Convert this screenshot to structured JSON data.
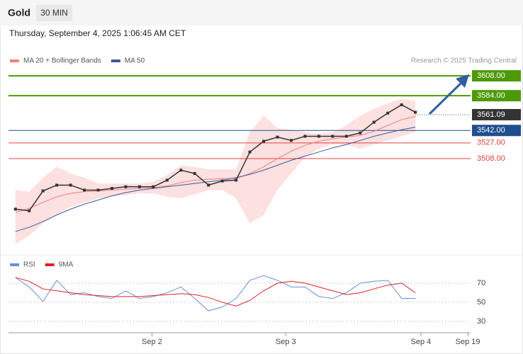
{
  "header": {
    "symbol": "Gold",
    "timeframe": "30 MIN",
    "datetime": "Thursday, September 4, 2025 1:06:45 AM CET",
    "credit": "Research © 2025 Trading Central"
  },
  "chart_data": [
    {
      "type": "line",
      "color": "#333333",
      "values": [
        3447,
        3445,
        3469,
        3476,
        3476,
        3470,
        3470,
        3472,
        3474,
        3474,
        3474,
        3482,
        3494,
        3490,
        3476,
        3481,
        3482,
        3516,
        3529,
        3534,
        3530,
        3535,
        3535,
        3535,
        3535,
        3539,
        3552,
        3563,
        3573,
        3564
      ],
      "series": [
        {
          "name": "MA 20 + Bollinger Bands",
          "color": "#f08080",
          "values": [
            3443,
            3448,
            3455,
            3462,
            3466,
            3468,
            3469,
            3470,
            3471,
            3472,
            3473,
            3475,
            3479,
            3482,
            3483,
            3484,
            3484,
            3490,
            3498,
            3508,
            3517,
            3524,
            3529,
            3532,
            3534,
            3536,
            3541,
            3548,
            3555,
            3559
          ]
        },
        {
          "name": "MA 50",
          "color": "#3a5a9a",
          "values": [
            3420,
            3425,
            3432,
            3440,
            3447,
            3453,
            3458,
            3463,
            3467,
            3470,
            3472,
            3474,
            3476,
            3478,
            3480,
            3482,
            3485,
            3489,
            3494,
            3500,
            3506,
            3511,
            3516,
            3521,
            3525,
            3530,
            3535,
            3539,
            3543,
            3546
          ]
        }
      ],
      "band_upper": [
        3470,
        3468,
        3485,
        3498,
        3490,
        3485,
        3478,
        3478,
        3478,
        3478,
        3480,
        3488,
        3500,
        3498,
        3495,
        3495,
        3495,
        3540,
        3560,
        3545,
        3543,
        3540,
        3538,
        3540,
        3548,
        3560,
        3568,
        3575,
        3580,
        3578
      ],
      "band_lower": [
        3405,
        3415,
        3430,
        3440,
        3450,
        3455,
        3460,
        3462,
        3464,
        3466,
        3466,
        3462,
        3460,
        3465,
        3470,
        3470,
        3460,
        3430,
        3440,
        3470,
        3490,
        3510,
        3520,
        3525,
        3525,
        3520,
        3525,
        3530,
        3535,
        3540
      ],
      "band_color": "#fde0e0",
      "ylim": [
        3396,
        3644
      ],
      "levels": [
        {
          "value": 3608,
          "label": "3608.00",
          "color": "#4e9a06",
          "boxed": true
        },
        {
          "value": 3584,
          "label": "3584.00",
          "color": "#4e9a06",
          "boxed": true
        },
        {
          "value": 3542,
          "label": "3542.00",
          "color": "#1f4e8c",
          "boxed": true
        },
        {
          "value": 3527,
          "label": "3527.00",
          "color": "#e04040",
          "boxed": false
        },
        {
          "value": 3508,
          "label": "3508.00",
          "color": "#e04040",
          "boxed": false
        }
      ],
      "last_price": 3561.09,
      "xlim": [
        -0.5,
        33
      ]
    },
    {
      "type": "line",
      "series": [
        {
          "name": "RSI",
          "color": "#6a8fd8",
          "values": [
            76,
            66,
            51,
            73,
            58,
            60,
            56,
            54,
            62,
            54,
            56,
            60,
            66,
            54,
            41,
            45,
            54,
            73,
            78,
            73,
            66,
            66,
            56,
            54,
            60,
            70,
            72,
            73,
            54,
            54
          ]
        },
        {
          "name": "9MA",
          "color": "#e02020",
          "values": [
            76,
            72,
            64,
            62,
            60,
            58,
            57,
            56,
            56,
            56,
            57,
            58,
            59,
            58,
            55,
            50,
            46,
            52,
            62,
            70,
            72,
            70,
            66,
            62,
            58,
            60,
            64,
            68,
            70,
            60
          ]
        }
      ],
      "ylim": [
        18,
        96
      ],
      "yticks": [
        70,
        50,
        30
      ],
      "xlim": [
        -0.5,
        33
      ],
      "xticks": [
        {
          "value": 9.9,
          "label": "Sep 2"
        },
        {
          "value": 19.6,
          "label": "Sep 3"
        },
        {
          "value": 29.4,
          "label": "Sep 4"
        },
        {
          "value": 32.8,
          "label": "Sep 19"
        }
      ]
    }
  ]
}
